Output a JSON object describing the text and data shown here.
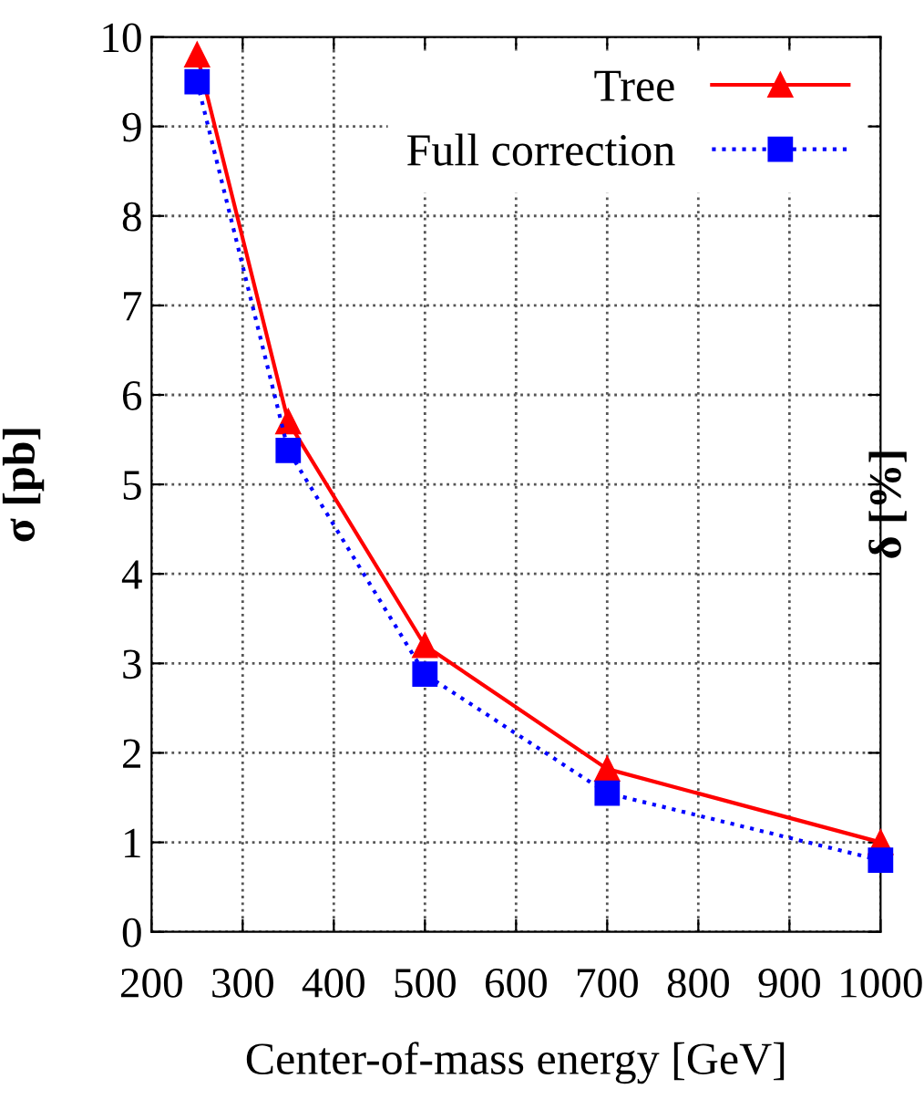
{
  "chart_data": {
    "type": "line",
    "xlabel": "Center-of-mass energy [GeV]",
    "ylabel": "σ [pb]",
    "y2label": "δ [%]",
    "x": [
      250,
      350,
      500,
      700,
      1000
    ],
    "series": [
      {
        "name": "Tree",
        "color": "#ff0000",
        "values": [
          9.8,
          5.7,
          3.2,
          1.82,
          1.0
        ],
        "marker": "triangle",
        "line_style": "solid"
      },
      {
        "name": "Full correction",
        "color": "#0000ff",
        "values": [
          9.5,
          5.38,
          2.88,
          1.55,
          0.8
        ],
        "marker": "square",
        "line_style": "dotted"
      }
    ],
    "xlim": [
      200,
      1000
    ],
    "xticks": [
      200,
      300,
      400,
      500,
      600,
      700,
      800,
      900,
      1000
    ],
    "ylim": [
      0,
      10
    ],
    "yticks": [
      0,
      1,
      2,
      3,
      4,
      5,
      6,
      7,
      8,
      9,
      10
    ],
    "grid": true,
    "legend": "top right"
  }
}
